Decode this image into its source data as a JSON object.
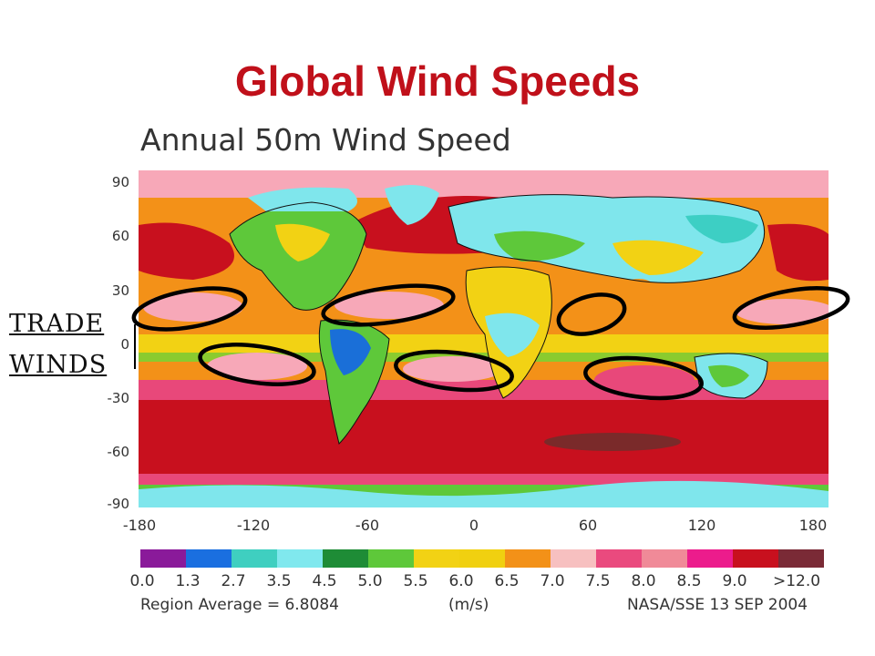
{
  "slide": {
    "title": "Global Wind Speeds"
  },
  "map": {
    "title": "Annual 50m Wind Speed",
    "lat_labels": [
      "90",
      "60",
      "30",
      "0",
      "-30",
      "-60",
      "-90"
    ],
    "lon_labels": [
      "-180",
      "-120",
      "-60",
      "0",
      "60",
      "120",
      "180"
    ],
    "palette": {
      "ocean_high": "#c8101e",
      "ocean_mid": "#e8487a",
      "pink_light": "#f7a8b8",
      "orange": "#f39118",
      "yellow": "#f2d214",
      "green_light": "#5ec83a",
      "green_dark": "#1e8c36",
      "cyan": "#7fe6ec",
      "teal": "#3dcfc4",
      "blue": "#1a6fd8",
      "maroon": "#7a2a2a"
    }
  },
  "annotation": {
    "label_line1": "TRADE",
    "label_line2": "WINDS",
    "ellipse_color": "#000000",
    "ellipse_count": 8
  },
  "legend": {
    "colors": [
      "#8a1a9a",
      "#1a6fe0",
      "#3fcfc0",
      "#80e8ee",
      "#1e8c36",
      "#5ec83a",
      "#f2d214",
      "#f0d010",
      "#f39118",
      "#f7c0c0",
      "#ea4a7e",
      "#f08a98",
      "#ec1c8c",
      "#c8101e",
      "#7a2a36"
    ],
    "labels": [
      "0.0",
      "1.3",
      "2.7",
      "3.5",
      "4.5",
      "5.0",
      "5.5",
      "6.0",
      "6.5",
      "7.0",
      "7.5",
      "8.0",
      "8.5",
      "9.0",
      ">12.0"
    ],
    "region_average": "Region Average = 6.8084",
    "unit": "(m/s)",
    "source": "NASA/SSE 13 SEP 2004"
  }
}
